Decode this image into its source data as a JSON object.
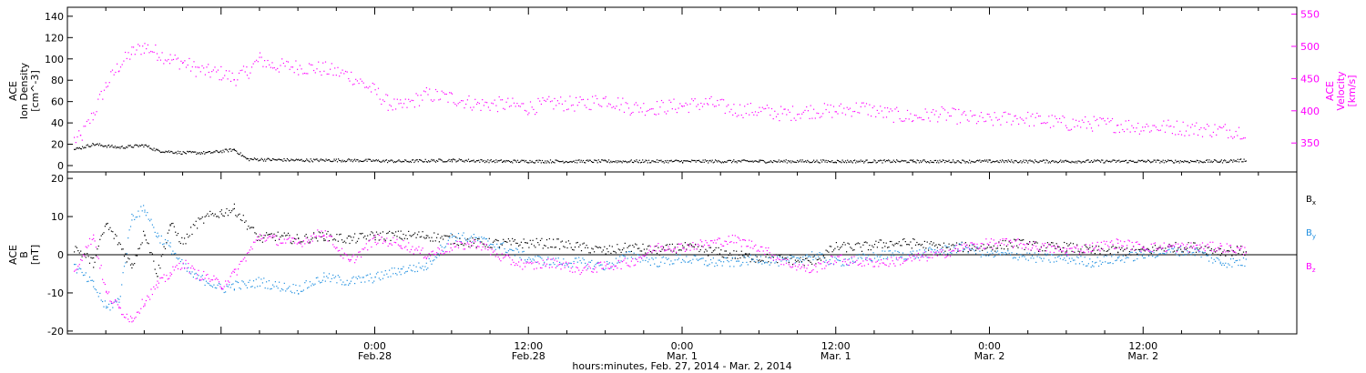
{
  "chart_data": [
    {
      "type": "scatter",
      "panel": "top",
      "ylabel_left": [
        "ACE",
        "Ion Density",
        "[cm^-3]"
      ],
      "ylabel_right": [
        "ACE",
        "Velocity",
        "[km/s]"
      ],
      "ylim_left": [
        0,
        145
      ],
      "ylim_right": [
        315,
        555
      ],
      "yticks_left": [
        0,
        20,
        40,
        60,
        80,
        100,
        120,
        140
      ],
      "yticks_right": [
        350,
        400,
        450,
        500,
        550
      ],
      "xlim_hours": [
        -12,
        84
      ],
      "series": [
        {
          "axis": "left",
          "color": "#000000",
          "points": [
            [
              -11.5,
              15
            ],
            [
              -10,
              20
            ],
            [
              -8,
              17
            ],
            [
              -6,
              19
            ],
            [
              -5,
              14
            ],
            [
              -3,
              12
            ],
            [
              -1,
              12
            ],
            [
              1,
              15
            ],
            [
              2,
              6
            ],
            [
              6,
              5
            ],
            [
              10,
              5
            ],
            [
              14,
              4
            ],
            [
              18,
              5
            ],
            [
              22,
              4
            ],
            [
              24,
              4
            ],
            [
              30,
              4
            ],
            [
              36,
              4
            ],
            [
              42,
              4
            ],
            [
              48,
              4
            ],
            [
              54,
              4
            ],
            [
              60,
              4
            ],
            [
              66,
              4
            ],
            [
              72,
              4
            ],
            [
              78,
              4
            ],
            [
              80,
              5
            ]
          ]
        },
        {
          "axis": "right",
          "color": "#ff00ff",
          "points": [
            [
              -11.5,
              355
            ],
            [
              -11,
              358
            ],
            [
              -10,
              395
            ],
            [
              -9,
              440
            ],
            [
              -8,
              470
            ],
            [
              -7,
              490
            ],
            [
              -6,
              500
            ],
            [
              -5,
              490
            ],
            [
              -4,
              480
            ],
            [
              -3,
              475
            ],
            [
              -2,
              465
            ],
            [
              -1,
              460
            ],
            [
              0,
              458
            ],
            [
              1,
              450
            ],
            [
              2,
              460
            ],
            [
              3,
              480
            ],
            [
              4,
              470
            ],
            [
              6,
              468
            ],
            [
              8,
              465
            ],
            [
              10,
              455
            ],
            [
              12,
              430
            ],
            [
              13,
              412
            ],
            [
              14,
              405
            ],
            [
              16,
              425
            ],
            [
              18,
              420
            ],
            [
              20,
              410
            ],
            [
              22,
              410
            ],
            [
              24,
              405
            ],
            [
              26,
              412
            ],
            [
              28,
              410
            ],
            [
              30,
              418
            ],
            [
              32,
              405
            ],
            [
              34,
              405
            ],
            [
              36,
              408
            ],
            [
              38,
              412
            ],
            [
              40,
              402
            ],
            [
              42,
              400
            ],
            [
              44,
              395
            ],
            [
              46,
              400
            ],
            [
              48,
              400
            ],
            [
              50,
              405
            ],
            [
              52,
              395
            ],
            [
              54,
              390
            ],
            [
              56,
              395
            ],
            [
              58,
              390
            ],
            [
              60,
              385
            ],
            [
              62,
              390
            ],
            [
              64,
              385
            ],
            [
              66,
              380
            ],
            [
              68,
              380
            ],
            [
              70,
              378
            ],
            [
              72,
              375
            ],
            [
              74,
              375
            ],
            [
              76,
              372
            ],
            [
              78,
              370
            ],
            [
              80,
              368
            ]
          ]
        }
      ]
    },
    {
      "type": "scatter",
      "panel": "bottom",
      "ylabel": [
        "ACE",
        "B",
        "[nT]"
      ],
      "ylim": [
        -21,
        21
      ],
      "yticks": [
        -20,
        -10,
        0,
        10,
        20
      ],
      "xlim_hours": [
        -12,
        84
      ],
      "series": [
        {
          "name": "Bx",
          "color": "#000000",
          "points": [
            [
              -11.5,
              2
            ],
            [
              -10,
              -2
            ],
            [
              -9,
              8
            ],
            [
              -8,
              3
            ],
            [
              -7,
              -3
            ],
            [
              -6,
              6
            ],
            [
              -5,
              -5
            ],
            [
              -4,
              8
            ],
            [
              -3,
              3
            ],
            [
              -2,
              8
            ],
            [
              -1,
              10
            ],
            [
              0,
              11
            ],
            [
              1,
              12
            ],
            [
              2,
              8
            ],
            [
              3,
              4
            ],
            [
              4,
              5
            ],
            [
              6,
              4
            ],
            [
              8,
              5
            ],
            [
              10,
              4
            ],
            [
              12,
              5
            ],
            [
              14,
              5
            ],
            [
              16,
              5
            ],
            [
              18,
              4
            ],
            [
              20,
              3
            ],
            [
              22,
              3
            ],
            [
              24,
              3
            ],
            [
              26,
              3
            ],
            [
              28,
              2
            ],
            [
              30,
              1
            ],
            [
              32,
              2
            ],
            [
              34,
              1
            ],
            [
              36,
              2
            ],
            [
              38,
              1
            ],
            [
              40,
              0
            ],
            [
              42,
              -1
            ],
            [
              44,
              -1
            ],
            [
              46,
              -2
            ],
            [
              48,
              2
            ],
            [
              50,
              2
            ],
            [
              52,
              3
            ],
            [
              54,
              3
            ],
            [
              56,
              2
            ],
            [
              58,
              2
            ],
            [
              60,
              2
            ],
            [
              62,
              3
            ],
            [
              64,
              2
            ],
            [
              66,
              2
            ],
            [
              68,
              1
            ],
            [
              70,
              1
            ],
            [
              72,
              1
            ],
            [
              74,
              2
            ],
            [
              76,
              2
            ],
            [
              78,
              1
            ],
            [
              80,
              1
            ]
          ]
        },
        {
          "name": "By",
          "color": "#1f8fe0",
          "points": [
            [
              -11.5,
              -3
            ],
            [
              -10,
              -8
            ],
            [
              -9,
              -14
            ],
            [
              -8,
              -12
            ],
            [
              -7,
              10
            ],
            [
              -6,
              12
            ],
            [
              -5,
              5
            ],
            [
              -4,
              2
            ],
            [
              -3,
              -3
            ],
            [
              -2,
              -6
            ],
            [
              -1,
              -7
            ],
            [
              0,
              -9
            ],
            [
              1,
              -8
            ],
            [
              2,
              -8
            ],
            [
              3,
              -7
            ],
            [
              4,
              -8
            ],
            [
              6,
              -9
            ],
            [
              8,
              -6
            ],
            [
              10,
              -7
            ],
            [
              12,
              -6
            ],
            [
              14,
              -4
            ],
            [
              16,
              -3
            ],
            [
              18,
              5
            ],
            [
              20,
              4
            ],
            [
              22,
              2
            ],
            [
              24,
              -1
            ],
            [
              26,
              -2
            ],
            [
              28,
              -2
            ],
            [
              30,
              -3
            ],
            [
              32,
              0
            ],
            [
              34,
              -2
            ],
            [
              36,
              -1
            ],
            [
              38,
              -2
            ],
            [
              40,
              -2
            ],
            [
              42,
              -1
            ],
            [
              44,
              -2
            ],
            [
              46,
              0
            ],
            [
              48,
              -2
            ],
            [
              50,
              -1
            ],
            [
              52,
              0
            ],
            [
              54,
              0
            ],
            [
              56,
              1
            ],
            [
              58,
              2
            ],
            [
              60,
              0
            ],
            [
              62,
              0
            ],
            [
              64,
              -1
            ],
            [
              66,
              -1
            ],
            [
              68,
              -2
            ],
            [
              70,
              -1
            ],
            [
              72,
              0
            ],
            [
              74,
              1
            ],
            [
              76,
              1
            ],
            [
              78,
              -2
            ],
            [
              80,
              -2
            ]
          ]
        },
        {
          "name": "Bz",
          "color": "#ff00ff",
          "points": [
            [
              -11.5,
              -4
            ],
            [
              -10,
              5
            ],
            [
              -9,
              -10
            ],
            [
              -8,
              -14
            ],
            [
              -7,
              -17
            ],
            [
              -6,
              -12
            ],
            [
              -5,
              -8
            ],
            [
              -4,
              -5
            ],
            [
              -3,
              -2
            ],
            [
              -2,
              -5
            ],
            [
              -1,
              -6
            ],
            [
              0,
              -8
            ],
            [
              1,
              -5
            ],
            [
              2,
              0
            ],
            [
              3,
              5
            ],
            [
              4,
              4
            ],
            [
              6,
              3
            ],
            [
              8,
              6
            ],
            [
              9,
              2
            ],
            [
              10,
              -2
            ],
            [
              12,
              4
            ],
            [
              14,
              3
            ],
            [
              16,
              0
            ],
            [
              18,
              2
            ],
            [
              20,
              3
            ],
            [
              22,
              -1
            ],
            [
              24,
              -3
            ],
            [
              26,
              -2
            ],
            [
              28,
              -4
            ],
            [
              30,
              -3
            ],
            [
              32,
              -2
            ],
            [
              34,
              2
            ],
            [
              36,
              2
            ],
            [
              38,
              3
            ],
            [
              40,
              4
            ],
            [
              42,
              2
            ],
            [
              44,
              -2
            ],
            [
              46,
              -4
            ],
            [
              48,
              -1
            ],
            [
              50,
              -2
            ],
            [
              52,
              -2
            ],
            [
              54,
              -1
            ],
            [
              56,
              0
            ],
            [
              58,
              2
            ],
            [
              60,
              3
            ],
            [
              62,
              3
            ],
            [
              64,
              2
            ],
            [
              66,
              1
            ],
            [
              68,
              2
            ],
            [
              70,
              3
            ],
            [
              72,
              2
            ],
            [
              74,
              2
            ],
            [
              76,
              2
            ],
            [
              78,
              2
            ],
            [
              80,
              1
            ]
          ]
        }
      ],
      "legend": [
        {
          "base": "B",
          "sub": "x",
          "color": "#000000"
        },
        {
          "base": "B",
          "sub": "y",
          "color": "#1f8fe0"
        },
        {
          "base": "B",
          "sub": "z",
          "color": "#ff00ff"
        }
      ],
      "legend_position": "right"
    }
  ],
  "x_axis": {
    "ticks": [
      {
        "hours": 12,
        "line1": "0:00",
        "line2": "Feb.28"
      },
      {
        "hours": 24,
        "line1": "12:00",
        "line2": "Feb.28"
      },
      {
        "hours": 36,
        "line1": "0:00",
        "line2": "Mar. 1"
      },
      {
        "hours": 48,
        "line1": "12:00",
        "line2": "Mar. 1"
      },
      {
        "hours": 60,
        "line1": "0:00",
        "line2": "Mar. 2"
      },
      {
        "hours": 72,
        "line1": "12:00",
        "line2": "Mar. 2"
      }
    ],
    "label": "hours:minutes, Feb. 27, 2014 - Mar. 2, 2014"
  },
  "colors": {
    "density": "#000000",
    "velocity": "#ff00ff",
    "bx": "#000000",
    "by": "#1f8fe0",
    "bz": "#ff00ff",
    "axis": "#000000"
  }
}
